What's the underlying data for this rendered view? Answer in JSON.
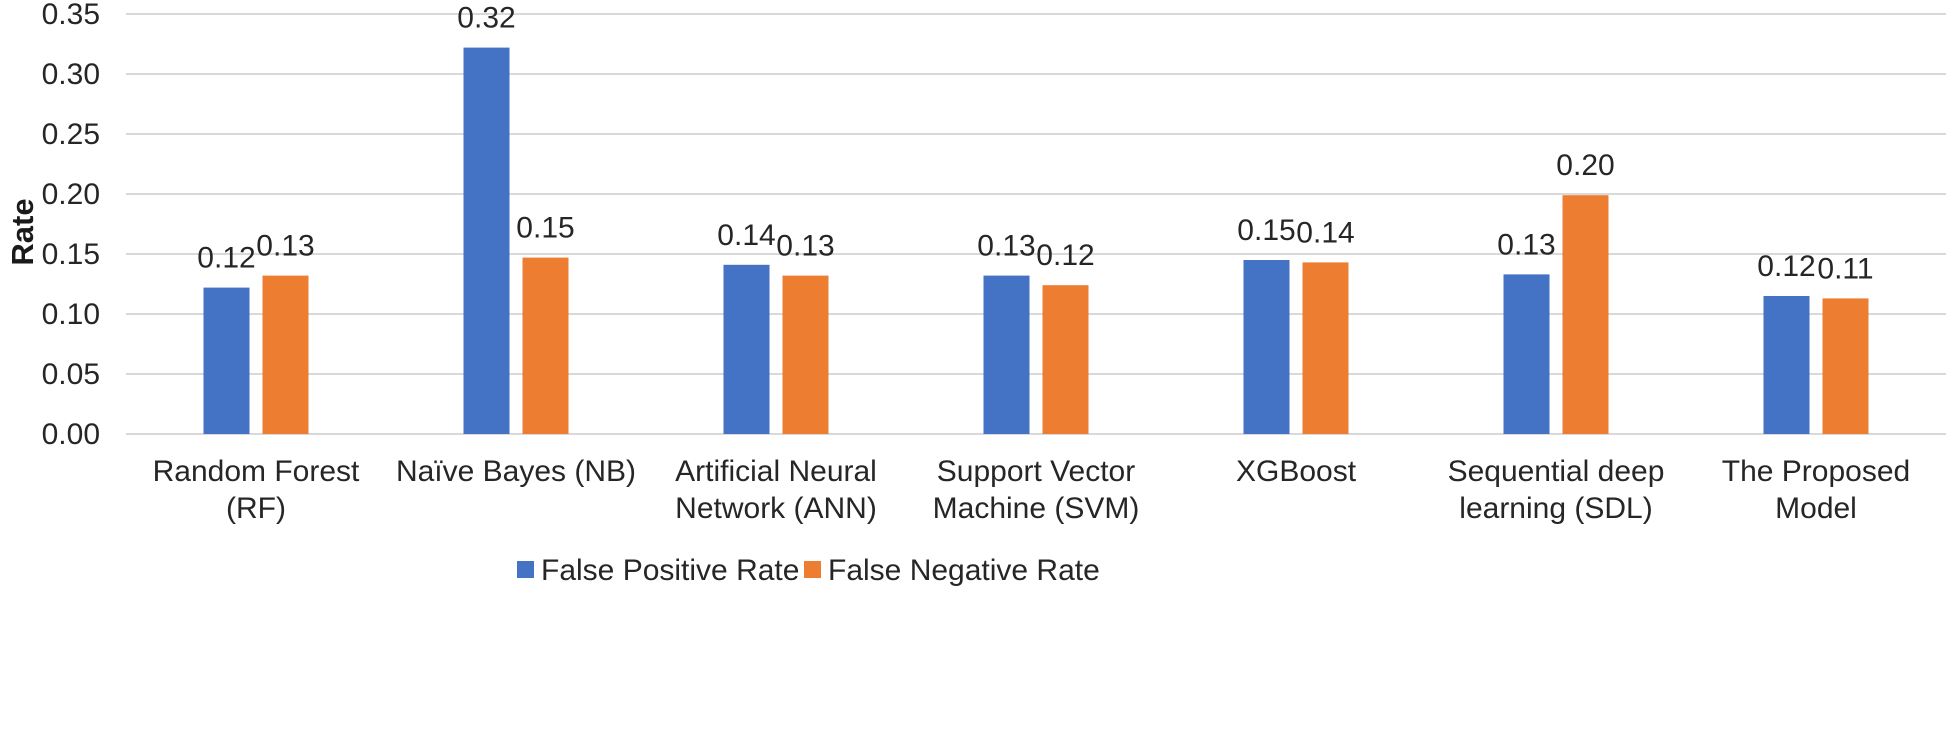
{
  "chart_data": {
    "type": "bar",
    "title": "",
    "xlabel": "",
    "ylabel": "Rate",
    "ylim": [
      0,
      0.35
    ],
    "yticks": [
      "0.00",
      "0.05",
      "0.10",
      "0.15",
      "0.20",
      "0.25",
      "0.30",
      "0.35"
    ],
    "grid": "horizontal",
    "legend_position": "bottom",
    "categories": [
      [
        "Random Forest",
        "(RF)"
      ],
      [
        "Naïve Bayes (NB)"
      ],
      [
        "Artificial Neural",
        "Network (ANN)"
      ],
      [
        "Support Vector",
        "Machine (SVM)"
      ],
      [
        "XGBoost"
      ],
      [
        "Sequential deep",
        "learning (SDL)"
      ],
      [
        "The Proposed",
        "Model"
      ]
    ],
    "series": [
      {
        "name": "False Positive Rate",
        "color": "#4472c4",
        "values": [
          0.122,
          0.322,
          0.141,
          0.132,
          0.145,
          0.133,
          0.115
        ],
        "labels": [
          "0.12",
          "0.32",
          "0.14",
          "0.13",
          "0.15",
          "0.13",
          "0.12"
        ]
      },
      {
        "name": "False Negative Rate",
        "color": "#ed7d31",
        "values": [
          0.132,
          0.147,
          0.132,
          0.124,
          0.143,
          0.199,
          0.113
        ],
        "labels": [
          "0.13",
          "0.15",
          "0.13",
          "0.12",
          "0.14",
          "0.20",
          "0.11"
        ]
      }
    ]
  }
}
